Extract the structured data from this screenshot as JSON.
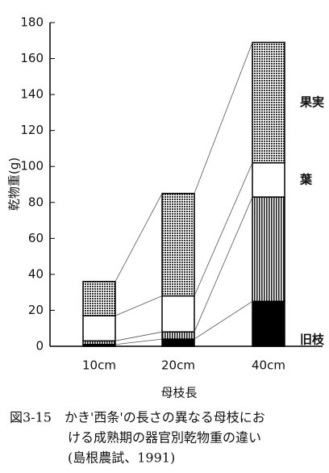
{
  "chart_data": {
    "type": "stacked-bar",
    "ylabel": "乾物重(g)",
    "xlabel": "母枝長",
    "categories": [
      "10cm",
      "20cm",
      "40cm"
    ],
    "series": [
      {
        "name": "旧枝",
        "color": "#000000",
        "values": [
          1,
          4,
          25
        ]
      },
      {
        "name": null,
        "color": "#777777",
        "values": [
          2,
          4,
          58
        ]
      },
      {
        "name": "葉",
        "color": "#ffffff",
        "values": [
          14,
          20,
          19
        ]
      },
      {
        "name": "果実",
        "color": "#444444",
        "values": [
          19,
          57,
          67
        ]
      }
    ],
    "ylim": [
      0,
      180
    ],
    "yticks": [
      0,
      20,
      40,
      60,
      80,
      100,
      120,
      140,
      160,
      180
    ],
    "caption": [
      "図3-15　かき'西条'の長さの異なる母枝にお",
      "ける成熟期の器官別乾物重の違い",
      "(島根農試、1991)"
    ]
  }
}
